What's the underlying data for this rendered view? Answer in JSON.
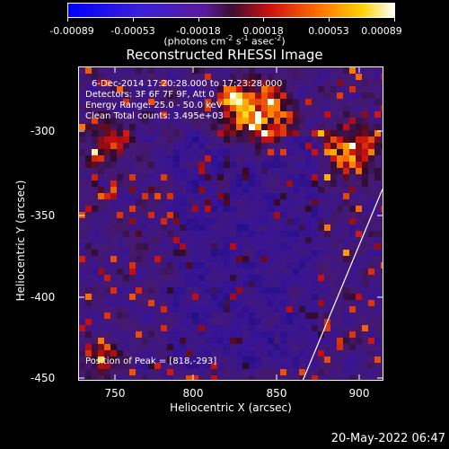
{
  "colorbar": {
    "ticks": [
      "-0.00089",
      "-0.00053",
      "-0.00018",
      "0.00018",
      "0.00053",
      "0.00089"
    ],
    "units_prefix": "(photons cm",
    "units_e1": "-2",
    "units_s": " s",
    "units_e2": "-1",
    "units_asec": " asec",
    "units_e3": "-2",
    "units_suffix": ")"
  },
  "chart_data": {
    "type": "heatmap",
    "title": "Reconstructed RHESSI Image",
    "xlabel": "Heliocentric X (arcsec)",
    "ylabel": "Heliocentric Y (arcsec)",
    "xlim": [
      721,
      912
    ],
    "ylim": [
      -452,
      -267
    ],
    "x_ticks": [
      750,
      800,
      850,
      900
    ],
    "y_ticks": [
      -300,
      -350,
      -400,
      -450
    ],
    "colorbar_range": [
      -0.00089,
      0.00089
    ],
    "peak": [
      818,
      -293
    ],
    "limb_line": {
      "x": [
        862,
        912
      ],
      "y": [
        -452,
        -339
      ]
    },
    "annotations": [
      "6-Dec-2014 17:20:28.000 to 17:23:28.000",
      "Detectors: 3F 6F 7F 9F, Att 0",
      "Energy Range: 25.0 - 50.0 keV",
      "Clean    Total counts: 3.495e+03",
      "Position of Peak = [818,-293]"
    ]
  },
  "footer": {
    "date": "20-May-2022 06:47"
  }
}
